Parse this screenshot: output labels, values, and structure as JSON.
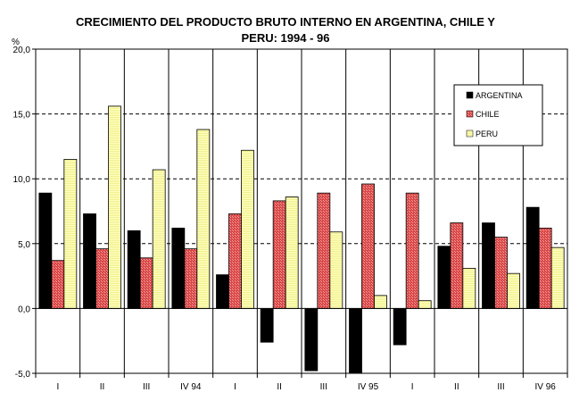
{
  "chart_data": {
    "type": "bar",
    "title_line1": "CRECIMIENTO DEL PRODUCTO BRUTO INTERNO EN ARGENTINA, CHILE Y",
    "title_line2": "PERU: 1994 - 96",
    "ylabel": "%",
    "ylim": [
      -5,
      20
    ],
    "yticks": [
      "20,0",
      "15,0",
      "10,0",
      "5,0",
      "0,0",
      "-5,0"
    ],
    "categories": [
      "I",
      "II",
      "III",
      "IV  94",
      "I",
      "II",
      "III",
      "IV  95",
      "I",
      "II",
      "III",
      "IV  96"
    ],
    "series": [
      {
        "name": "ARGENTINA",
        "color": "#000000",
        "values": [
          8.9,
          7.3,
          6.0,
          6.2,
          2.6,
          -2.6,
          -4.8,
          -5.0,
          -2.8,
          4.8,
          6.6,
          7.8
        ]
      },
      {
        "name": "CHILE",
        "color": "#e05050",
        "values": [
          3.7,
          4.6,
          3.9,
          4.6,
          7.3,
          8.3,
          8.9,
          9.6,
          8.9,
          6.6,
          5.5,
          6.2
        ]
      },
      {
        "name": "PERU",
        "color": "#ffffb0",
        "values": [
          11.5,
          15.6,
          10.7,
          13.8,
          12.2,
          8.6,
          5.9,
          1.0,
          0.6,
          3.1,
          2.7,
          4.7
        ]
      }
    ],
    "grid": "horizontal-dashed",
    "legend": "top-right"
  }
}
